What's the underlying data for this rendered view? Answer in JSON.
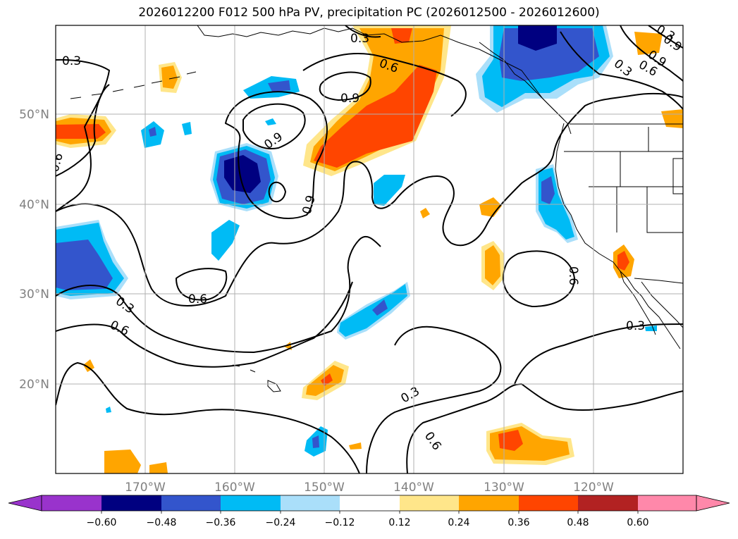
{
  "title": "2026012200 F012 500 hPa PV, precipitation PC (2026012500 - 2026012600)",
  "map": {
    "lat_labels": [
      "50°N",
      "40°N",
      "30°N",
      "20°N"
    ],
    "lon_labels": [
      "170°W",
      "160°W",
      "150°W",
      "140°W",
      "130°W",
      "120°W"
    ],
    "contour_labels": [
      "0.3",
      "0.3",
      "0.6",
      "0.9",
      "0.9",
      "0.9",
      "0.6",
      "0.3",
      "0.6",
      "0.6",
      "0.3",
      "0.6",
      "0.6",
      "0.3",
      "0.9",
      "0.6",
      "0.3",
      "0.9",
      "0.3"
    ]
  },
  "colorbar": {
    "ticks": [
      "−0.60",
      "−0.48",
      "−0.36",
      "−0.24",
      "−0.12",
      "0.12",
      "0.24",
      "0.36",
      "0.48",
      "0.60"
    ],
    "colors": [
      "#9933cc",
      "#000080",
      "#3355cc",
      "#00bbf5",
      "#aadffa",
      "#ffffff",
      "#ffe68a",
      "#ffa500",
      "#ff4500",
      "#b22222",
      "#ff88aa"
    ]
  },
  "colors": {
    "grid": "#b0b0b0",
    "contour": "#000000"
  }
}
